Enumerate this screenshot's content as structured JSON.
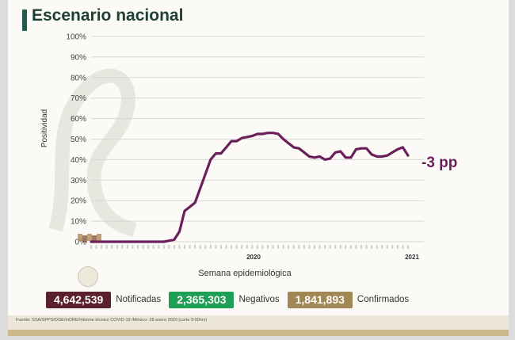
{
  "title": "Escenario nacional",
  "colors": {
    "line": "#6b1f5a",
    "title": "#1e3f33",
    "accent": "#235b4e",
    "notificadas": "#5b1f2d",
    "negativos": "#1f9e55",
    "confirmados": "#a08754"
  },
  "chart_data": {
    "type": "line",
    "ylabel": "Positividad",
    "xlabel": "Semana epidemiológica",
    "year_labels": [
      "2020",
      "2021"
    ],
    "ylim": [
      0,
      100
    ],
    "y_ticks": [
      "0%",
      "10%",
      "20%",
      "30%",
      "40%",
      "50%",
      "60%",
      "70%",
      "80%",
      "90%",
      "100%"
    ],
    "grid": true,
    "annotation": "-3 pp",
    "series": [
      {
        "values": [
          0,
          0,
          0,
          0,
          0,
          0,
          0,
          0,
          0,
          0,
          0,
          0,
          0,
          0,
          0,
          0.5,
          1,
          5,
          15,
          17,
          19,
          26,
          33,
          40,
          43,
          43,
          46,
          49,
          49,
          50.5,
          51,
          51.5,
          52.5,
          52.5,
          53,
          53,
          52.5,
          50,
          48,
          46,
          45.5,
          43.5,
          41.5,
          41,
          41.5,
          40,
          40.5,
          43.5,
          44,
          41,
          41,
          45,
          45.5,
          45.5,
          42.5,
          41.5,
          41.5,
          42,
          43.5,
          45,
          46,
          42
        ]
      }
    ]
  },
  "stats": {
    "notificadas_value": "4,642,539",
    "notificadas_label": "Notificadas",
    "negativos_value": "2,365,303",
    "negativos_label": "Negativos",
    "confirmados_value": "1,841,893",
    "confirmados_label": "Confirmados"
  },
  "source": "Fuente: SSA/SPPS/DGE/InDRE/Informe técnico COVID-19 /México- 28 enero 2020 (corte 9:00hrs)"
}
